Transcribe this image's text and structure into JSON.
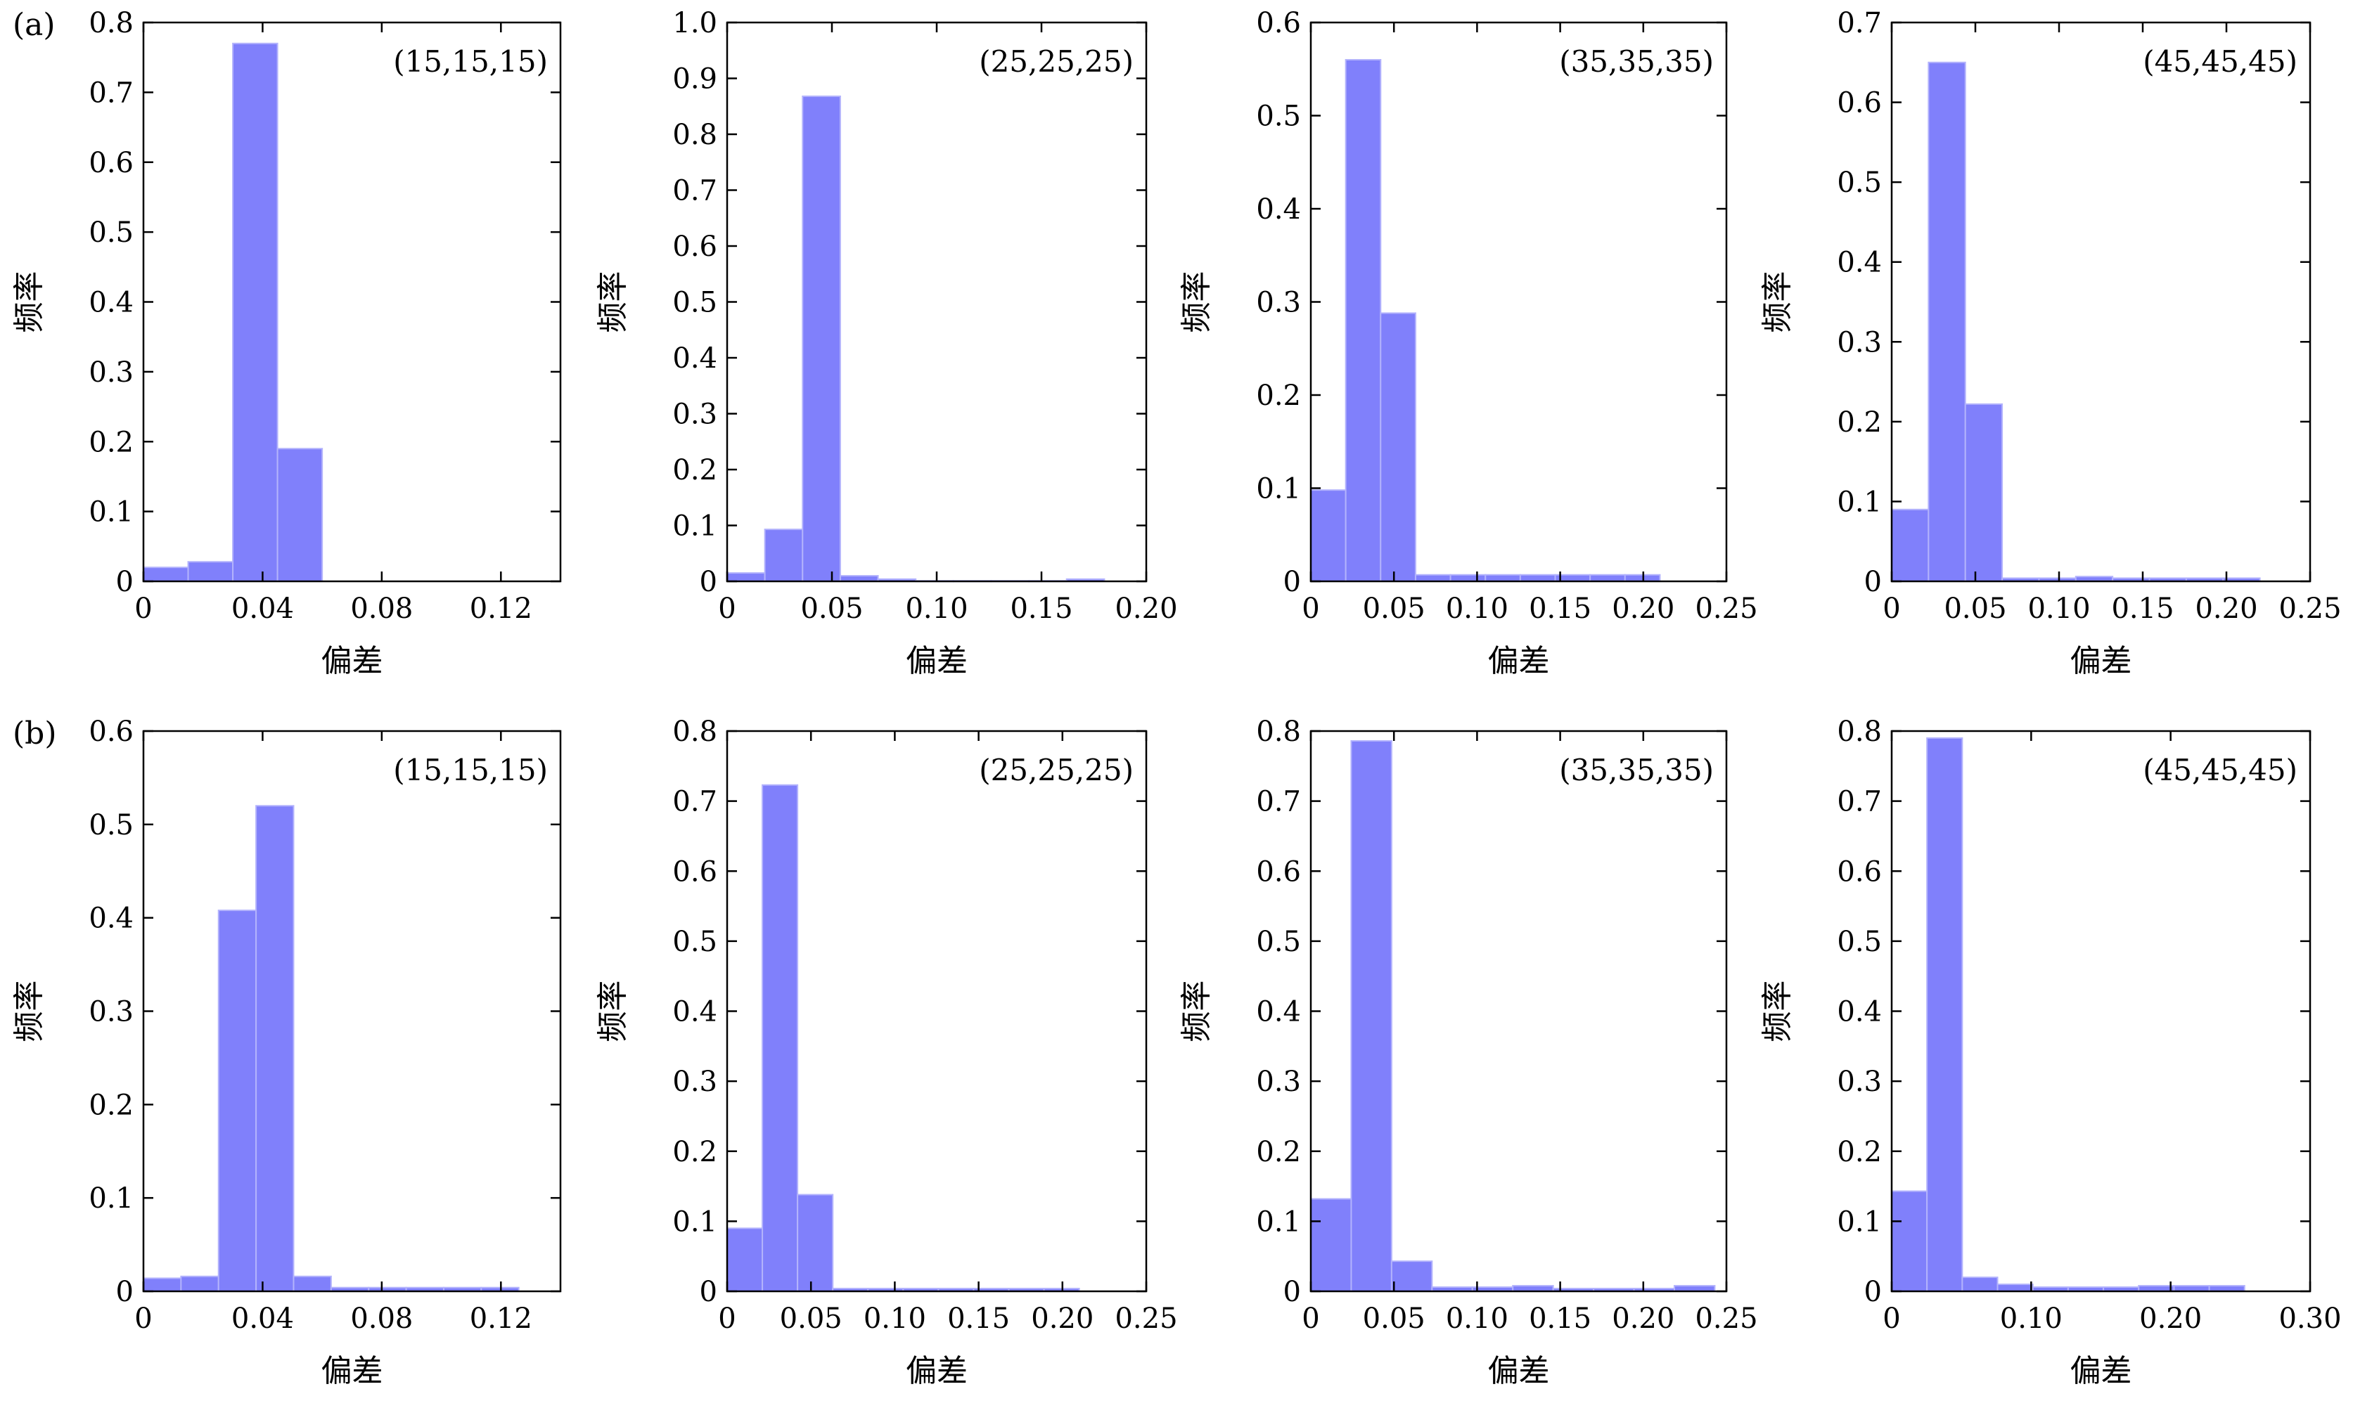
{
  "row_labels": [
    "(a)",
    "(b)"
  ],
  "colors": {
    "bar": "#8080fb",
    "bar_edge": "#b3b3fc",
    "axis": "#000000"
  },
  "chart_data": [
    {
      "type": "bar",
      "row": 0,
      "col": 0,
      "title": "(15,15,15)",
      "xlabel": "偏差",
      "ylabel": "频率",
      "xlim": [
        0,
        0.14
      ],
      "ylim": [
        0,
        0.8
      ],
      "xticks": [
        0,
        0.04,
        0.08,
        0.12
      ],
      "xtick_labels": [
        "0",
        "0.04",
        "0.08",
        "0.12"
      ],
      "yticks": [
        0,
        0.1,
        0.2,
        0.3,
        0.4,
        0.5,
        0.6,
        0.7,
        0.8
      ],
      "ytick_labels": [
        "0",
        "0.1",
        "0.2",
        "0.3",
        "0.4",
        "0.5",
        "0.6",
        "0.7",
        "0.8"
      ],
      "bin_edges": [
        0,
        0.015,
        0.03,
        0.045,
        0.06,
        0.075,
        0.09,
        0.105,
        0.12,
        0.135
      ],
      "values": [
        0.02,
        0.028,
        0.77,
        0.19,
        0,
        0,
        0,
        0,
        0
      ]
    },
    {
      "type": "bar",
      "row": 0,
      "col": 1,
      "title": "(25,25,25)",
      "xlabel": "偏差",
      "ylabel": "频率",
      "xlim": [
        0,
        0.2
      ],
      "ylim": [
        0,
        1.0
      ],
      "xticks": [
        0,
        0.05,
        0.1,
        0.15,
        0.2
      ],
      "xtick_labels": [
        "0",
        "0.05",
        "0.10",
        "0.15",
        "0.20"
      ],
      "yticks": [
        0,
        0.1,
        0.2,
        0.3,
        0.4,
        0.5,
        0.6,
        0.7,
        0.8,
        0.9,
        1.0
      ],
      "ytick_labels": [
        "0",
        "0.1",
        "0.2",
        "0.3",
        "0.4",
        "0.5",
        "0.6",
        "0.7",
        "0.8",
        "0.9",
        "1.0"
      ],
      "bin_edges": [
        0,
        0.018,
        0.036,
        0.054,
        0.072,
        0.09,
        0.108,
        0.126,
        0.144,
        0.162,
        0.18
      ],
      "values": [
        0.015,
        0.093,
        0.868,
        0.01,
        0.004,
        0.001,
        0.001,
        0.001,
        0.001,
        0.004
      ]
    },
    {
      "type": "bar",
      "row": 0,
      "col": 2,
      "title": "(35,35,35)",
      "xlabel": "偏差",
      "ylabel": "频率",
      "xlim": [
        0,
        0.25
      ],
      "ylim": [
        0,
        0.6
      ],
      "xticks": [
        0,
        0.05,
        0.1,
        0.15,
        0.2,
        0.25
      ],
      "xtick_labels": [
        "0",
        "0.05",
        "0.10",
        "0.15",
        "0.20",
        "0.25"
      ],
      "yticks": [
        0,
        0.1,
        0.2,
        0.3,
        0.4,
        0.5,
        0.6
      ],
      "ytick_labels": [
        "0",
        "0.1",
        "0.2",
        "0.3",
        "0.4",
        "0.5",
        "0.6"
      ],
      "bin_edges": [
        0,
        0.021,
        0.042,
        0.063,
        0.084,
        0.105,
        0.126,
        0.147,
        0.168,
        0.189,
        0.21
      ],
      "values": [
        0.098,
        0.56,
        0.288,
        0.007,
        0.007,
        0.007,
        0.007,
        0.007,
        0.007,
        0.007
      ]
    },
    {
      "type": "bar",
      "row": 0,
      "col": 3,
      "title": "(45,45,45)",
      "xlabel": "偏差",
      "ylabel": "频率",
      "xlim": [
        0,
        0.25
      ],
      "ylim": [
        0,
        0.7
      ],
      "xticks": [
        0,
        0.05,
        0.1,
        0.15,
        0.2,
        0.25
      ],
      "xtick_labels": [
        "0",
        "0.05",
        "0.10",
        "0.15",
        "0.20",
        "0.25"
      ],
      "yticks": [
        0,
        0.1,
        0.2,
        0.3,
        0.4,
        0.5,
        0.6,
        0.7
      ],
      "ytick_labels": [
        "0",
        "0.1",
        "0.2",
        "0.3",
        "0.4",
        "0.5",
        "0.6",
        "0.7"
      ],
      "bin_edges": [
        0,
        0.022,
        0.044,
        0.066,
        0.088,
        0.11,
        0.132,
        0.154,
        0.176,
        0.198,
        0.22
      ],
      "values": [
        0.09,
        0.65,
        0.222,
        0.004,
        0.004,
        0.006,
        0.004,
        0.004,
        0.004,
        0.004
      ]
    },
    {
      "type": "bar",
      "row": 1,
      "col": 0,
      "title": "(15,15,15)",
      "xlabel": "偏差",
      "ylabel": "频率",
      "xlim": [
        0,
        0.14
      ],
      "ylim": [
        0,
        0.6
      ],
      "xticks": [
        0,
        0.04,
        0.08,
        0.12
      ],
      "xtick_labels": [
        "0",
        "0.04",
        "0.08",
        "0.12"
      ],
      "yticks": [
        0,
        0.1,
        0.2,
        0.3,
        0.4,
        0.5,
        0.6
      ],
      "ytick_labels": [
        "0",
        "0.1",
        "0.2",
        "0.3",
        "0.4",
        "0.5",
        "0.6"
      ],
      "bin_edges": [
        0,
        0.0126,
        0.0252,
        0.0378,
        0.0504,
        0.063,
        0.0756,
        0.0882,
        0.1008,
        0.1134,
        0.126
      ],
      "values": [
        0.014,
        0.016,
        0.408,
        0.52,
        0.016,
        0.004,
        0.004,
        0.004,
        0.004,
        0.004
      ]
    },
    {
      "type": "bar",
      "row": 1,
      "col": 1,
      "title": "(25,25,25)",
      "xlabel": "偏差",
      "ylabel": "频率",
      "xlim": [
        0,
        0.25
      ],
      "ylim": [
        0,
        0.8
      ],
      "xticks": [
        0,
        0.05,
        0.1,
        0.15,
        0.2,
        0.25
      ],
      "xtick_labels": [
        "0",
        "0.05",
        "0.10",
        "0.15",
        "0.20",
        "0.25"
      ],
      "yticks": [
        0,
        0.1,
        0.2,
        0.3,
        0.4,
        0.5,
        0.6,
        0.7,
        0.8
      ],
      "ytick_labels": [
        "0",
        "0.1",
        "0.2",
        "0.3",
        "0.4",
        "0.5",
        "0.6",
        "0.7",
        "0.8"
      ],
      "bin_edges": [
        0,
        0.021,
        0.042,
        0.063,
        0.084,
        0.105,
        0.126,
        0.147,
        0.168,
        0.189,
        0.21
      ],
      "values": [
        0.09,
        0.723,
        0.138,
        0.004,
        0.004,
        0.004,
        0.004,
        0.004,
        0.004,
        0.004
      ]
    },
    {
      "type": "bar",
      "row": 1,
      "col": 2,
      "title": "(35,35,35)",
      "xlabel": "偏差",
      "ylabel": "频率",
      "xlim": [
        0,
        0.25
      ],
      "ylim": [
        0,
        0.8
      ],
      "xticks": [
        0,
        0.05,
        0.1,
        0.15,
        0.2,
        0.25
      ],
      "xtick_labels": [
        "0",
        "0.05",
        "0.10",
        "0.15",
        "0.20",
        "0.25"
      ],
      "yticks": [
        0,
        0.1,
        0.2,
        0.3,
        0.4,
        0.5,
        0.6,
        0.7,
        0.8
      ],
      "ytick_labels": [
        "0",
        "0.1",
        "0.2",
        "0.3",
        "0.4",
        "0.5",
        "0.6",
        "0.7",
        "0.8"
      ],
      "bin_edges": [
        0,
        0.0243,
        0.0486,
        0.0729,
        0.0972,
        0.1215,
        0.1458,
        0.1701,
        0.1944,
        0.2187,
        0.243
      ],
      "values": [
        0.132,
        0.786,
        0.043,
        0.006,
        0.006,
        0.008,
        0.004,
        0.004,
        0.004,
        0.008
      ]
    },
    {
      "type": "bar",
      "row": 1,
      "col": 3,
      "title": "(45,45,45)",
      "xlabel": "偏差",
      "ylabel": "频率",
      "xlim": [
        0,
        0.3
      ],
      "ylim": [
        0,
        0.8
      ],
      "xticks": [
        0,
        0.1,
        0.2,
        0.3
      ],
      "xtick_labels": [
        "0",
        "0.10",
        "0.20",
        "0.30"
      ],
      "yticks": [
        0,
        0.1,
        0.2,
        0.3,
        0.4,
        0.5,
        0.6,
        0.7,
        0.8
      ],
      "ytick_labels": [
        "0",
        "0.1",
        "0.2",
        "0.3",
        "0.4",
        "0.5",
        "0.6",
        "0.7",
        "0.8"
      ],
      "bin_edges": [
        0,
        0.0253,
        0.0506,
        0.0759,
        0.1012,
        0.1265,
        0.1518,
        0.1771,
        0.2024,
        0.2277,
        0.253
      ],
      "values": [
        0.143,
        0.79,
        0.02,
        0.01,
        0.006,
        0.006,
        0.006,
        0.008,
        0.008,
        0.008
      ]
    }
  ]
}
